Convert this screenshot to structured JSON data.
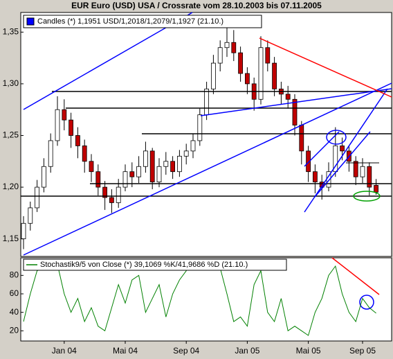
{
  "chart_data": [
    {
      "type": "candlestick",
      "title": "EUR Euro (USD) USA / Crossrate vom 28.10.2003 bis 07.11.2005",
      "ylim": [
        1.133,
        1.369
      ],
      "yticks": [
        {
          "value": 1.15,
          "label": "1,15"
        },
        {
          "value": 1.2,
          "label": "1,20"
        },
        {
          "value": 1.25,
          "label": "1,25"
        },
        {
          "value": 1.3,
          "label": "1,30"
        },
        {
          "value": 1.35,
          "label": "1,35"
        }
      ],
      "series": [
        {
          "name": "Candles (*) 1,1951 USD/1,2018/1,2079/1,1927 (21.10.)",
          "color": "#0000ff",
          "up_color": "#ffffff",
          "down_color": "#c00000",
          "open": [
            1.15,
            1.165,
            1.18,
            1.2,
            1.22,
            1.245,
            1.275,
            1.265,
            1.25,
            1.24,
            1.225,
            1.215,
            1.2,
            1.19,
            1.185,
            1.2,
            1.215,
            1.21,
            1.22,
            1.235,
            1.205,
            1.22,
            1.225,
            1.215,
            1.23,
            1.235,
            1.245,
            1.27,
            1.295,
            1.32,
            1.335,
            1.34,
            1.33,
            1.31,
            1.3,
            1.285,
            1.335,
            1.32,
            1.295,
            1.29,
            1.285,
            1.26,
            1.235,
            1.215,
            1.205,
            1.2,
            1.215,
            1.24,
            1.235,
            1.225,
            1.21,
            1.22,
            1.2018
          ],
          "high": [
            1.172,
            1.186,
            1.207,
            1.228,
            1.252,
            1.288,
            1.285,
            1.272,
            1.258,
            1.246,
            1.232,
            1.222,
            1.206,
            1.198,
            1.208,
            1.222,
            1.224,
            1.23,
            1.244,
            1.238,
            1.228,
            1.234,
            1.23,
            1.236,
            1.242,
            1.252,
            1.276,
            1.302,
            1.328,
            1.342,
            1.365,
            1.352,
            1.336,
            1.316,
            1.306,
            1.346,
            1.342,
            1.326,
            1.302,
            1.298,
            1.29,
            1.264,
            1.24,
            1.222,
            1.212,
            1.224,
            1.258,
            1.248,
            1.24,
            1.23,
            1.228,
            1.224,
            1.2079
          ],
          "low": [
            1.14,
            1.158,
            1.176,
            1.195,
            1.214,
            1.24,
            1.255,
            1.238,
            1.228,
            1.214,
            1.205,
            1.192,
            1.178,
            1.175,
            1.18,
            1.196,
            1.2,
            1.204,
            1.214,
            1.198,
            1.2,
            1.212,
            1.208,
            1.21,
            1.222,
            1.228,
            1.24,
            1.265,
            1.29,
            1.312,
            1.326,
            1.322,
            1.302,
            1.29,
            1.274,
            1.28,
            1.312,
            1.288,
            1.28,
            1.276,
            1.25,
            1.222,
            1.205,
            1.194,
            1.188,
            1.196,
            1.21,
            1.226,
            1.215,
            1.202,
            1.204,
            1.192,
            1.1927
          ],
          "close": [
            1.165,
            1.18,
            1.2,
            1.22,
            1.245,
            1.275,
            1.265,
            1.25,
            1.24,
            1.225,
            1.215,
            1.2,
            1.19,
            1.185,
            1.2,
            1.215,
            1.21,
            1.22,
            1.235,
            1.205,
            1.22,
            1.225,
            1.215,
            1.23,
            1.235,
            1.245,
            1.27,
            1.295,
            1.32,
            1.335,
            1.34,
            1.33,
            1.31,
            1.3,
            1.285,
            1.335,
            1.32,
            1.295,
            1.29,
            1.285,
            1.26,
            1.235,
            1.215,
            1.205,
            1.2,
            1.215,
            1.24,
            1.235,
            1.225,
            1.21,
            1.22,
            1.2,
            1.1951
          ]
        }
      ]
    },
    {
      "type": "line",
      "ylim": [
        9,
        99
      ],
      "yticks": [
        20,
        40,
        60,
        80
      ],
      "categories": [
        null,
        null,
        null,
        null,
        null,
        null,
        "Jan 04",
        null,
        null,
        null,
        null,
        null,
        null,
        null,
        null,
        "Mai 04",
        null,
        null,
        null,
        null,
        null,
        null,
        null,
        null,
        "Sep 04",
        null,
        null,
        null,
        null,
        null,
        null,
        null,
        null,
        "Jan 05",
        null,
        null,
        null,
        null,
        null,
        null,
        null,
        null,
        "Mai 05",
        null,
        null,
        null,
        null,
        null,
        null,
        null,
        "Sep 05",
        null,
        null
      ],
      "series": [
        {
          "name": "Stochastik9/5 von Close (*) 39,1069 %K/41,9686 %D (21.10.)",
          "color": "#008000",
          "values": [
            30,
            60,
            85,
            88,
            90,
            92,
            60,
            40,
            55,
            30,
            45,
            25,
            20,
            45,
            70,
            50,
            75,
            80,
            40,
            55,
            70,
            35,
            60,
            75,
            85,
            92,
            95,
            93,
            90,
            88,
            60,
            30,
            35,
            25,
            70,
            85,
            40,
            30,
            55,
            20,
            25,
            20,
            15,
            40,
            55,
            80,
            90,
            60,
            40,
            30,
            55,
            45,
            39.1069
          ]
        }
      ]
    }
  ]
}
